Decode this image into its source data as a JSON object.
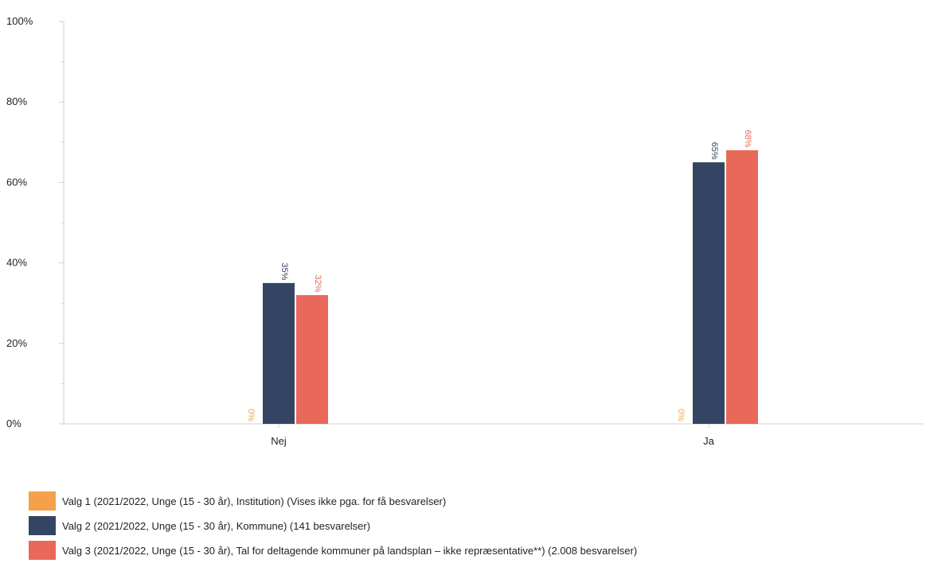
{
  "chart_data": {
    "type": "bar",
    "categories": [
      "Nej",
      "Ja"
    ],
    "ylim": [
      0,
      100
    ],
    "yticks": [
      0,
      20,
      40,
      60,
      80,
      100
    ],
    "ytick_labels": [
      "0%",
      "20%",
      "40%",
      "60%",
      "80%",
      "100%"
    ],
    "grid": false,
    "legend_position": "bottom",
    "series": [
      {
        "name": "Valg 1 (2021/2022, Unge (15 - 30 år), Institution) (Vises ikke pga. for få besvarelser)",
        "color": "#f5a04a",
        "values": [
          0,
          0
        ],
        "labels": [
          "0%",
          "0%"
        ]
      },
      {
        "name": "Valg 2 (2021/2022, Unge (15 - 30 år), Kommune) (141 besvarelser)",
        "color": "#344563",
        "values": [
          35,
          65
        ],
        "labels": [
          "35%",
          "65%"
        ]
      },
      {
        "name": "Valg 3 (2021/2022, Unge (15 - 30 år), Tal for deltagende kommuner på landsplan – ikke repræsentative**) (2.008 besvarelser)",
        "color": "#e8695a",
        "values": [
          32,
          68
        ],
        "labels": [
          "32%",
          "68%"
        ]
      }
    ]
  }
}
